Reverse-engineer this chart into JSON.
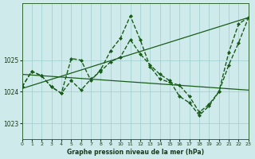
{
  "title": "Graphe pression niveau de la mer (hPa)",
  "bg_color": "#ceeaea",
  "grid_color": "#9ecece",
  "line_color": "#1a5c1a",
  "xlim": [
    0,
    23
  ],
  "ylim": [
    1022.5,
    1026.8
  ],
  "yticks": [
    1023,
    1024,
    1025
  ],
  "xticks": [
    0,
    1,
    2,
    3,
    4,
    5,
    6,
    7,
    8,
    9,
    10,
    11,
    12,
    13,
    14,
    15,
    16,
    17,
    18,
    19,
    20,
    21,
    22,
    23
  ],
  "series": [
    {
      "x": [
        0,
        23
      ],
      "y": [
        1024.1,
        1026.35
      ],
      "style": "solid",
      "linewidth": 0.9,
      "marker": false
    },
    {
      "x": [
        0,
        23
      ],
      "y": [
        1024.55,
        1024.05
      ],
      "style": "solid",
      "linewidth": 0.9,
      "marker": false
    },
    {
      "x": [
        0,
        1,
        2,
        3,
        4,
        5,
        6,
        7,
        8,
        9,
        10,
        11,
        12,
        13,
        14,
        15,
        16,
        17,
        18,
        19,
        20,
        21,
        22,
        23
      ],
      "y": [
        1024.15,
        1024.65,
        1024.5,
        1024.15,
        1023.95,
        1025.05,
        1025.0,
        1024.35,
        1024.7,
        1025.3,
        1025.7,
        1026.4,
        1025.65,
        1024.8,
        1024.4,
        1024.3,
        1024.2,
        1023.85,
        1023.35,
        1023.6,
        1024.0,
        1025.25,
        1026.15,
        1026.35
      ],
      "style": "dashed",
      "linewidth": 1.0,
      "marker": true
    },
    {
      "x": [
        0,
        1,
        2,
        3,
        4,
        5,
        6,
        7,
        8,
        9,
        10,
        11,
        12,
        13,
        14,
        15,
        16,
        17,
        18,
        19,
        20,
        21,
        22,
        23
      ],
      "y": [
        1024.15,
        1024.65,
        1024.5,
        1024.15,
        1023.95,
        1024.35,
        1024.05,
        1024.4,
        1024.65,
        1024.95,
        1025.1,
        1025.65,
        1025.2,
        1024.85,
        1024.55,
        1024.35,
        1023.85,
        1023.65,
        1023.25,
        1023.55,
        1024.0,
        1024.85,
        1025.55,
        1026.35
      ],
      "style": "dashed",
      "linewidth": 1.0,
      "marker": true
    }
  ]
}
